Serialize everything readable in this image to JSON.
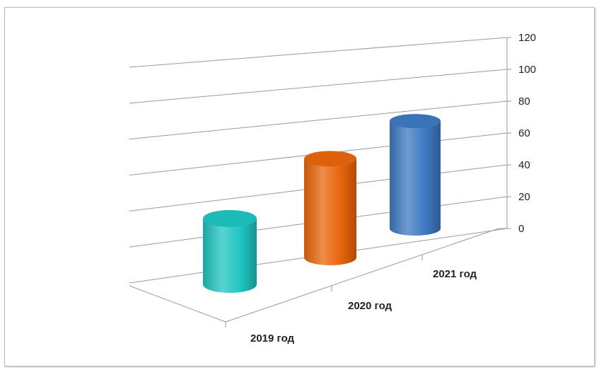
{
  "chart_data": {
    "type": "bar",
    "style": "3d-cylinder",
    "categories": [
      "2019 год",
      "2020 год",
      "2021 год"
    ],
    "values": [
      38,
      57,
      62
    ],
    "colors": [
      "#1fc5c1",
      "#e9650b",
      "#3e79c2"
    ],
    "ylim": [
      0,
      120
    ],
    "yticks": [
      "0",
      "20",
      "40",
      "60",
      "80",
      "100",
      "120"
    ],
    "title": "",
    "xlabel": "",
    "ylabel": "",
    "grid": true,
    "legend": "none"
  }
}
